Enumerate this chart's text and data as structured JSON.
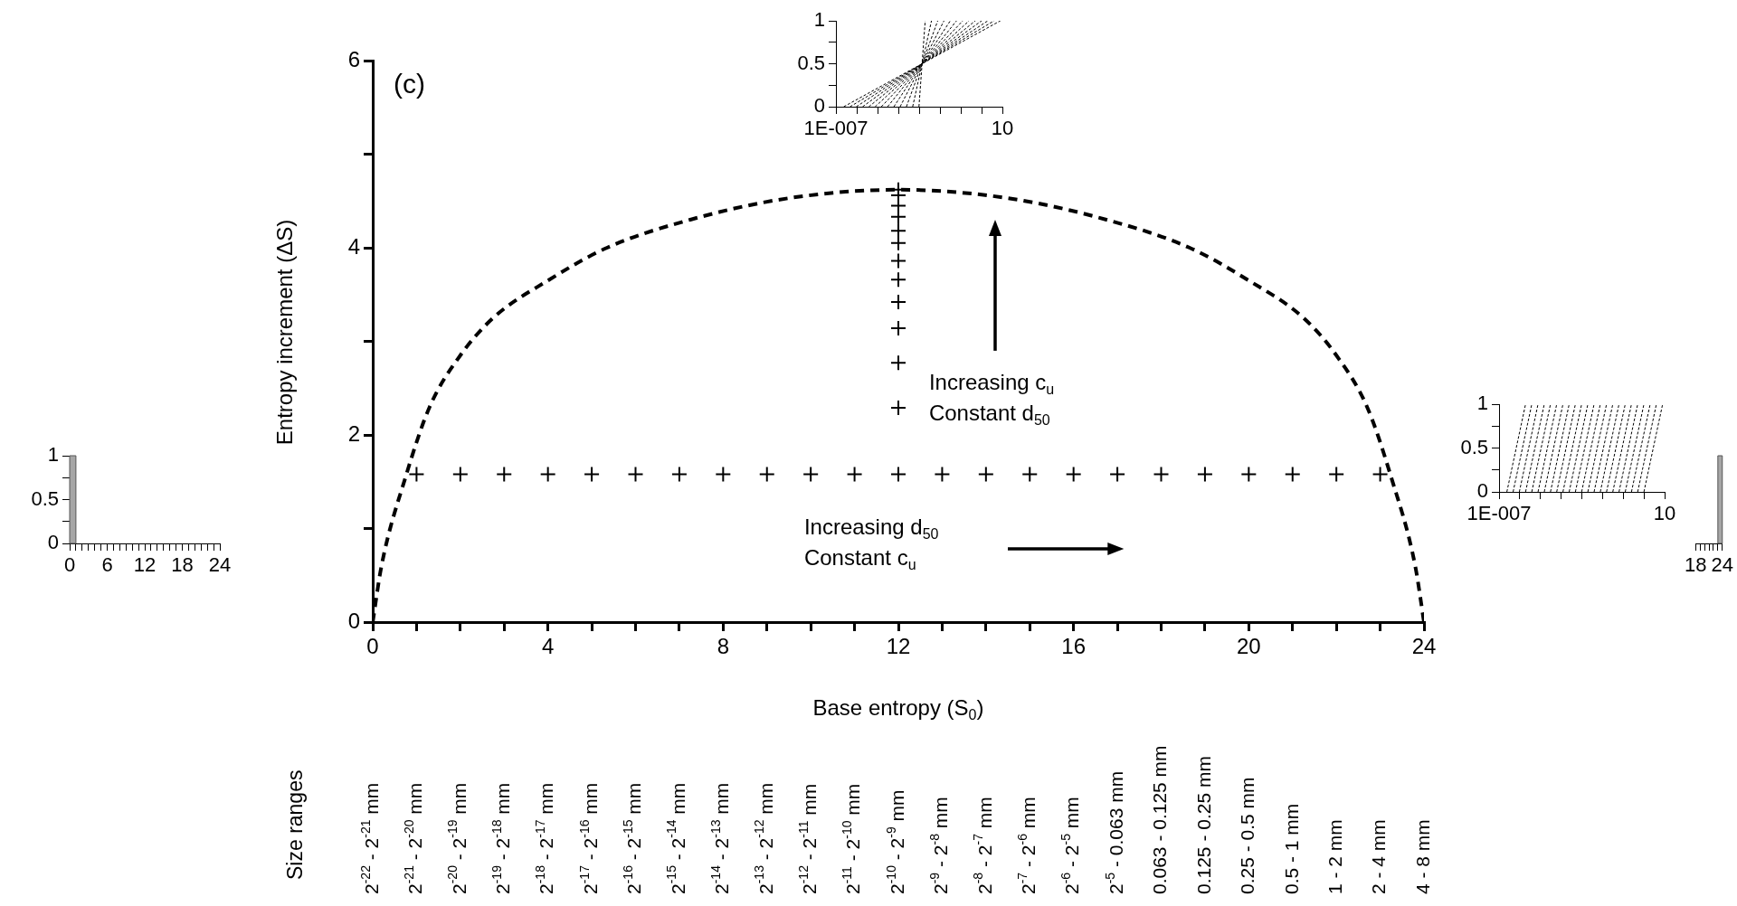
{
  "chart_data": [
    {
      "type": "scatter",
      "xlabel": "Base entropy (S$_{0}$)",
      "ylabel": "Entropy increment (ΔS)",
      "xlim": [
        0,
        24
      ],
      "ylim": [
        0,
        6
      ],
      "xticks": [
        0,
        {
          "value": 1,
          "label": null
        },
        {
          "value": 2,
          "label": null
        },
        {
          "value": 3,
          "label": null
        },
        4,
        {
          "value": 5,
          "label": null
        },
        {
          "value": 6,
          "label": null
        },
        {
          "value": 7,
          "label": null
        },
        8,
        {
          "value": 9,
          "label": null
        },
        {
          "value": 10,
          "label": null
        },
        {
          "value": 11,
          "label": null
        },
        12,
        {
          "value": 13,
          "label": null
        },
        {
          "value": 14,
          "label": null
        },
        {
          "value": 15,
          "label": null
        },
        16,
        {
          "value": 17,
          "label": null
        },
        {
          "value": 18,
          "label": null
        },
        {
          "value": 19,
          "label": null
        },
        20,
        {
          "value": 21,
          "label": null
        },
        {
          "value": 22,
          "label": null
        },
        {
          "value": 23,
          "label": null
        },
        24
      ],
      "yticks": [
        0,
        {
          "value": 1,
          "label": null
        },
        2,
        {
          "value": 3,
          "label": null
        },
        4,
        {
          "value": 5,
          "label": null
        },
        6
      ],
      "grid": false,
      "legend": false,
      "annotations": [
        "(c)",
        "Size ranges",
        "Increasing c$_{u}$\nConstant d$_{50}$",
        "Increasing d$_{50}$\nConstant c$_{u}$",
        "2$^{-22}$ - 2$^{-21}$ mm",
        "2$^{-21}$ - 2$^{-20}$ mm",
        "2$^{-20}$ - 2$^{-19}$ mm",
        "2$^{-19}$ - 2$^{-18}$ mm",
        "2$^{-18}$ - 2$^{-17}$ mm",
        "2$^{-17}$ - 2$^{-16}$ mm",
        "2$^{-16}$ - 2$^{-15}$ mm",
        "2$^{-15}$ - 2$^{-14}$ mm",
        "2$^{-14}$ - 2$^{-13}$ mm",
        "2$^{-13}$ - 2$^{-12}$ mm",
        "2$^{-12}$ - 2$^{-11}$ mm",
        "2$^{-11}$ - 2$^{-10}$ mm",
        "2$^{-10}$ - 2$^{-9}$ mm",
        "2$^{-9}$ - 2$^{-8}$ mm",
        "2$^{-8}$ - 2$^{-7}$ mm",
        "2$^{-7}$ - 2$^{-6}$ mm",
        "2$^{-6}$ - 2$^{-5}$ mm",
        "2$^{-5}$ - 0.063 mm",
        "0.063 - 0.125 mm",
        "0.125 - 0.25 mm",
        "0.25 - 0.5 mm",
        "0.5 - 1 mm",
        "1 - 2 mm",
        "2 - 4 mm",
        "4 - 8 mm"
      ],
      "series": [
        {
          "type": "line",
          "line_style": "dashed",
          "marker": "none",
          "color": "#000000",
          "x": [
            0,
            0.2,
            0.75,
            1.3,
            2,
            2.75,
            4,
            5.35,
            7.25,
            9.5,
            12,
            14.5,
            16.75,
            18.65,
            20,
            21.25,
            22,
            22.7,
            23.25,
            23.8,
            24
          ],
          "values": [
            0,
            0.6,
            1.55,
            2.3,
            2.85,
            3.25,
            3.65,
            4.0,
            4.3,
            4.53,
            4.62,
            4.53,
            4.3,
            4.0,
            3.65,
            3.25,
            2.85,
            2.3,
            1.55,
            0.6,
            0
          ]
        },
        {
          "type": "scatter",
          "marker": "cross",
          "color": "#000000",
          "x": [
            1,
            2,
            3,
            4,
            5,
            6,
            7,
            8,
            9,
            10,
            11,
            12,
            13,
            14,
            15,
            16,
            17,
            18,
            19,
            20,
            21,
            22,
            23
          ],
          "values": [
            1.58,
            1.58,
            1.58,
            1.58,
            1.58,
            1.58,
            1.58,
            1.58,
            1.58,
            1.58,
            1.58,
            1.58,
            1.58,
            1.58,
            1.58,
            1.58,
            1.58,
            1.58,
            1.58,
            1.58,
            1.58,
            1.58,
            1.58
          ]
        },
        {
          "type": "scatter",
          "marker": "cross",
          "color": "#000000",
          "x": [
            12,
            12,
            12,
            12,
            12,
            12,
            12,
            12,
            12,
            12,
            12,
            12
          ],
          "values": [
            2.29,
            2.77,
            3.14,
            3.42,
            3.66,
            3.86,
            4.05,
            4.18,
            4.33,
            4.45,
            4.56,
            4.62
          ]
        }
      ]
    },
    {
      "type": "line",
      "line_style": "dashed",
      "log": "x",
      "xlim": [
        1e-07,
        10
      ],
      "ylim": [
        0,
        1
      ],
      "grid": false,
      "legend": false,
      "xticks": [
        {
          "value": 1e-07,
          "label": "1E-007"
        },
        {
          "value": 1e-06,
          "label": null
        },
        {
          "value": 1e-05,
          "label": null
        },
        {
          "value": 0.0001,
          "label": null
        },
        {
          "value": 0.001,
          "label": null
        },
        {
          "value": 0.01,
          "label": null
        },
        {
          "value": 0.1,
          "label": null
        },
        {
          "value": 1,
          "label": null
        },
        10
      ],
      "yticks": [
        0,
        {
          "value": 0.25,
          "label": null
        },
        0.5,
        {
          "value": 0.75,
          "label": null
        },
        1
      ],
      "series": [
        {
          "color": "#000000",
          "x": [
            0.000977,
            0.00138,
            0.00195
          ],
          "values": [
            0,
            0.5,
            1
          ]
        },
        {
          "color": "#000000",
          "x": [
            0.000488,
            0.00138,
            0.0039
          ],
          "values": [
            0,
            0.5,
            1
          ]
        },
        {
          "color": "#000000",
          "x": [
            0.000244,
            0.00138,
            0.0078
          ],
          "values": [
            0,
            0.5,
            1
          ]
        },
        {
          "color": "#000000",
          "x": [
            0.000122,
            0.00138,
            0.0156
          ],
          "values": [
            0,
            0.5,
            1
          ]
        },
        {
          "color": "#000000",
          "x": [
            6.1e-05,
            0.00138,
            0.0313
          ],
          "values": [
            0,
            0.5,
            1
          ]
        },
        {
          "color": "#000000",
          "x": [
            3.05e-05,
            0.00138,
            0.0625
          ],
          "values": [
            0,
            0.5,
            1
          ]
        },
        {
          "color": "#000000",
          "x": [
            1.53e-05,
            0.00138,
            0.125
          ],
          "values": [
            0,
            0.5,
            1
          ]
        },
        {
          "color": "#000000",
          "x": [
            7.63e-06,
            0.00138,
            0.25
          ],
          "values": [
            0,
            0.5,
            1
          ]
        },
        {
          "color": "#000000",
          "x": [
            3.81e-06,
            0.00138,
            0.5
          ],
          "values": [
            0,
            0.5,
            1
          ]
        },
        {
          "color": "#000000",
          "x": [
            1.91e-06,
            0.00138,
            1
          ],
          "values": [
            0,
            0.5,
            1
          ]
        },
        {
          "color": "#000000",
          "x": [
            9.54e-07,
            0.00138,
            2
          ],
          "values": [
            0,
            0.5,
            1
          ]
        },
        {
          "color": "#000000",
          "x": [
            4.77e-07,
            0.00138,
            4
          ],
          "values": [
            0,
            0.5,
            1
          ]
        },
        {
          "color": "#000000",
          "x": [
            2.38e-07,
            0.00138,
            8
          ],
          "values": [
            0,
            0.5,
            1
          ]
        }
      ]
    },
    {
      "type": "histogram",
      "bins": [
        0,
        1
      ],
      "values": [
        1
      ],
      "color": "#a6a6a6",
      "xlim": [
        0,
        24
      ],
      "ylim": [
        0,
        1
      ],
      "grid": false,
      "legend": false,
      "xticks": [
        0,
        {
          "value": 1,
          "label": null
        },
        {
          "value": 2,
          "label": null
        },
        {
          "value": 3,
          "label": null
        },
        {
          "value": 4,
          "label": null
        },
        {
          "value": 5,
          "label": null
        },
        6,
        {
          "value": 7,
          "label": null
        },
        {
          "value": 8,
          "label": null
        },
        {
          "value": 9,
          "label": null
        },
        {
          "value": 10,
          "label": null
        },
        {
          "value": 11,
          "label": null
        },
        12,
        {
          "value": 13,
          "label": null
        },
        {
          "value": 14,
          "label": null
        },
        {
          "value": 15,
          "label": null
        },
        {
          "value": 16,
          "label": null
        },
        {
          "value": 17,
          "label": null
        },
        18,
        {
          "value": 19,
          "label": null
        },
        {
          "value": 20,
          "label": null
        },
        {
          "value": 21,
          "label": null
        },
        {
          "value": 22,
          "label": null
        },
        {
          "value": 23,
          "label": null
        },
        24
      ],
      "yticks": [
        0,
        {
          "value": 0.25,
          "label": null
        },
        0.5,
        {
          "value": 0.75,
          "label": null
        },
        1
      ]
    },
    {
      "type": "line",
      "line_style": "dashed",
      "log": "x",
      "xlim": [
        1e-07,
        10
      ],
      "ylim": [
        0,
        1
      ],
      "grid": false,
      "legend": false,
      "xticks": [
        {
          "value": 1e-07,
          "label": "1E-007"
        },
        {
          "value": 1e-06,
          "label": null
        },
        {
          "value": 1e-05,
          "label": null
        },
        {
          "value": 0.0001,
          "label": null
        },
        {
          "value": 0.001,
          "label": null
        },
        {
          "value": 0.01,
          "label": null
        },
        {
          "value": 0.1,
          "label": null
        },
        {
          "value": 1,
          "label": null
        },
        10
      ],
      "yticks": [
        0,
        {
          "value": 0.25,
          "label": null
        },
        0.5,
        {
          "value": 0.75,
          "label": null
        },
        1
      ],
      "series": [
        {
          "color": "#000000",
          "x": [
            2.38e-07,
            1.91e-06
          ],
          "values": [
            0,
            1
          ]
        },
        {
          "color": "#000000",
          "x": [
            4.77e-07,
            3.81e-06
          ],
          "values": [
            0,
            1
          ]
        },
        {
          "color": "#000000",
          "x": [
            9.54e-07,
            7.63e-06
          ],
          "values": [
            0,
            1
          ]
        },
        {
          "color": "#000000",
          "x": [
            1.91e-06,
            1.53e-05
          ],
          "values": [
            0,
            1
          ]
        },
        {
          "color": "#000000",
          "x": [
            3.81e-06,
            3.05e-05
          ],
          "values": [
            0,
            1
          ]
        },
        {
          "color": "#000000",
          "x": [
            7.63e-06,
            6.1e-05
          ],
          "values": [
            0,
            1
          ]
        },
        {
          "color": "#000000",
          "x": [
            1.53e-05,
            0.000122
          ],
          "values": [
            0,
            1
          ]
        },
        {
          "color": "#000000",
          "x": [
            3.05e-05,
            0.000244
          ],
          "values": [
            0,
            1
          ]
        },
        {
          "color": "#000000",
          "x": [
            6.1e-05,
            0.000488
          ],
          "values": [
            0,
            1
          ]
        },
        {
          "color": "#000000",
          "x": [
            0.000122,
            0.000977
          ],
          "values": [
            0,
            1
          ]
        },
        {
          "color": "#000000",
          "x": [
            0.000244,
            0.00195
          ],
          "values": [
            0,
            1
          ]
        },
        {
          "color": "#000000",
          "x": [
            0.000488,
            0.0039
          ],
          "values": [
            0,
            1
          ]
        },
        {
          "color": "#000000",
          "x": [
            0.000977,
            0.0078
          ],
          "values": [
            0,
            1
          ]
        },
        {
          "color": "#000000",
          "x": [
            0.00195,
            0.0156
          ],
          "values": [
            0,
            1
          ]
        },
        {
          "color": "#000000",
          "x": [
            0.0039,
            0.0313
          ],
          "values": [
            0,
            1
          ]
        },
        {
          "color": "#000000",
          "x": [
            0.0078,
            0.0625
          ],
          "values": [
            0,
            1
          ]
        },
        {
          "color": "#000000",
          "x": [
            0.0156,
            0.125
          ],
          "values": [
            0,
            1
          ]
        },
        {
          "color": "#000000",
          "x": [
            0.0313,
            0.25
          ],
          "values": [
            0,
            1
          ]
        },
        {
          "color": "#000000",
          "x": [
            0.0625,
            0.5
          ],
          "values": [
            0,
            1
          ]
        },
        {
          "color": "#000000",
          "x": [
            0.125,
            1
          ],
          "values": [
            0,
            1
          ]
        },
        {
          "color": "#000000",
          "x": [
            0.25,
            2
          ],
          "values": [
            0,
            1
          ]
        },
        {
          "color": "#000000",
          "x": [
            0.5,
            4
          ],
          "values": [
            0,
            1
          ]
        },
        {
          "color": "#000000",
          "x": [
            1,
            8
          ],
          "values": [
            0,
            1
          ]
        }
      ]
    },
    {
      "type": "histogram",
      "bins": [
        23,
        24
      ],
      "values": [
        1
      ],
      "color": "#a6a6a6",
      "xlim": [
        18,
        24
      ],
      "ylim": [
        0,
        1
      ],
      "grid": false,
      "legend": false,
      "tick_labels": "x",
      "xticks": [
        18,
        {
          "value": 19,
          "label": null
        },
        {
          "value": 20,
          "label": null
        },
        {
          "value": 21,
          "label": null
        },
        {
          "value": 22,
          "label": null
        },
        {
          "value": 23,
          "label": null
        },
        24
      ]
    }
  ]
}
